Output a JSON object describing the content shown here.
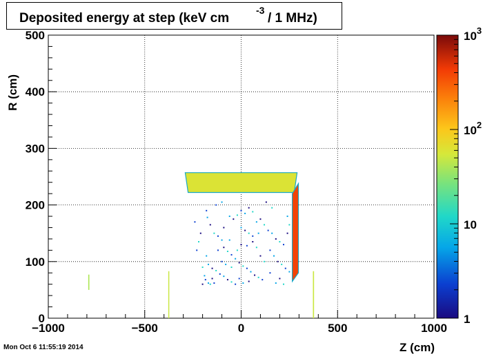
{
  "chart_data": {
    "type": "heatmap",
    "title_part1": "Deposited energy at step (keV cm",
    "title_exp": "-3",
    "title_part2": "/ 1 MHz)",
    "xlabel": "Z (cm)",
    "ylabel": "R (cm)",
    "xlim": [
      -1000,
      1000
    ],
    "ylim": [
      0,
      500
    ],
    "x_ticks": [
      -1000,
      -500,
      0,
      500,
      1000
    ],
    "x_tick_labels": [
      "−1000",
      "−500",
      "0",
      "500",
      "1000"
    ],
    "y_ticks": [
      0,
      100,
      200,
      300,
      400,
      500
    ],
    "y_tick_labels": [
      "0",
      "100",
      "200",
      "300",
      "400",
      "500"
    ],
    "grid": true,
    "colorbar": {
      "scale": "log",
      "range": [
        1,
        1000
      ],
      "tick_labels": [
        {
          "value": 1,
          "label": "1"
        },
        {
          "value": 10,
          "label": "10"
        },
        {
          "value": 100,
          "label": "10",
          "exp": "2"
        },
        {
          "value": 1000,
          "label": "10",
          "exp": "3"
        }
      ]
    },
    "regions": [
      {
        "name": "Upper horizontal slab",
        "shape": "polygon",
        "points": [
          [
            -290,
            257
          ],
          [
            290,
            257
          ],
          [
            275,
            222
          ],
          [
            -275,
            222
          ]
        ],
        "value": 60
      },
      {
        "name": "Vertical column",
        "shape": "polygon",
        "points": [
          [
            265,
            220
          ],
          [
            297,
            238
          ],
          [
            297,
            80
          ],
          [
            265,
            65
          ]
        ],
        "value": 400
      },
      {
        "name": "Small strip left",
        "shape": "rect",
        "z": [
          -793,
          -787
        ],
        "r": [
          50,
          77
        ],
        "value": 40
      },
      {
        "name": "Thin strip",
        "shape": "rect",
        "z": [
          -378,
          -373
        ],
        "r": [
          0,
          83
        ],
        "value": 50
      },
      {
        "name": "Thin strip right",
        "shape": "rect",
        "z": [
          372,
          378
        ],
        "r": [
          0,
          83
        ],
        "value": 50
      }
    ],
    "scatter_points": [
      [
        -180,
        190
      ],
      [
        -175,
        178
      ],
      [
        -160,
        165
      ],
      [
        -140,
        150
      ],
      [
        -120,
        145
      ],
      [
        -100,
        138
      ],
      [
        -90,
        125
      ],
      [
        -70,
        118
      ],
      [
        -50,
        112
      ],
      [
        -30,
        105
      ],
      [
        -10,
        98
      ],
      [
        10,
        92
      ],
      [
        30,
        88
      ],
      [
        50,
        82
      ],
      [
        70,
        76
      ],
      [
        90,
        72
      ],
      [
        110,
        68
      ],
      [
        -170,
        95
      ],
      [
        -150,
        88
      ],
      [
        -130,
        84
      ],
      [
        -110,
        78
      ],
      [
        -90,
        74
      ],
      [
        -70,
        68
      ],
      [
        -50,
        64
      ],
      [
        -30,
        60
      ],
      [
        -190,
        75
      ],
      [
        -200,
        60
      ],
      [
        -160,
        60
      ],
      [
        -140,
        62
      ],
      [
        0,
        160
      ],
      [
        20,
        155
      ],
      [
        40,
        150
      ],
      [
        60,
        145
      ],
      [
        80,
        170
      ],
      [
        100,
        175
      ],
      [
        120,
        165
      ],
      [
        140,
        155
      ],
      [
        160,
        150
      ],
      [
        180,
        140
      ],
      [
        200,
        135
      ],
      [
        220,
        130
      ],
      [
        -60,
        180
      ],
      [
        -40,
        175
      ],
      [
        -20,
        182
      ],
      [
        0,
        190
      ],
      [
        20,
        185
      ],
      [
        40,
        195
      ],
      [
        60,
        188
      ],
      [
        150,
        120
      ],
      [
        170,
        110
      ],
      [
        190,
        100
      ],
      [
        210,
        95
      ],
      [
        230,
        88
      ],
      [
        250,
        82
      ],
      [
        -210,
        150
      ],
      [
        -220,
        135
      ],
      [
        -230,
        120
      ],
      [
        -180,
        110
      ],
      [
        240,
        150
      ],
      [
        250,
        165
      ],
      [
        -100,
        100
      ],
      [
        -80,
        95
      ],
      [
        100,
        110
      ],
      [
        120,
        100
      ],
      [
        -130,
        200
      ],
      [
        -100,
        205
      ],
      [
        130,
        205
      ],
      [
        160,
        195
      ],
      [
        -240,
        170
      ],
      [
        240,
        180
      ],
      [
        0,
        130
      ],
      [
        -20,
        120
      ],
      [
        30,
        128
      ],
      [
        -60,
        138
      ],
      [
        60,
        135
      ],
      [
        80,
        125
      ],
      [
        -120,
        120
      ],
      [
        90,
        150
      ],
      [
        -90,
        160
      ],
      [
        -200,
        90
      ],
      [
        -185,
        68
      ],
      [
        -170,
        62
      ],
      [
        -150,
        70
      ],
      [
        -50,
        90
      ],
      [
        150,
        80
      ],
      [
        180,
        62
      ],
      [
        200,
        70
      ],
      [
        220,
        60
      ],
      [
        -10,
        70
      ],
      [
        10,
        62
      ],
      [
        40,
        65
      ]
    ]
  },
  "timestamp": "Mon Oct  6 11:55:19 2014"
}
